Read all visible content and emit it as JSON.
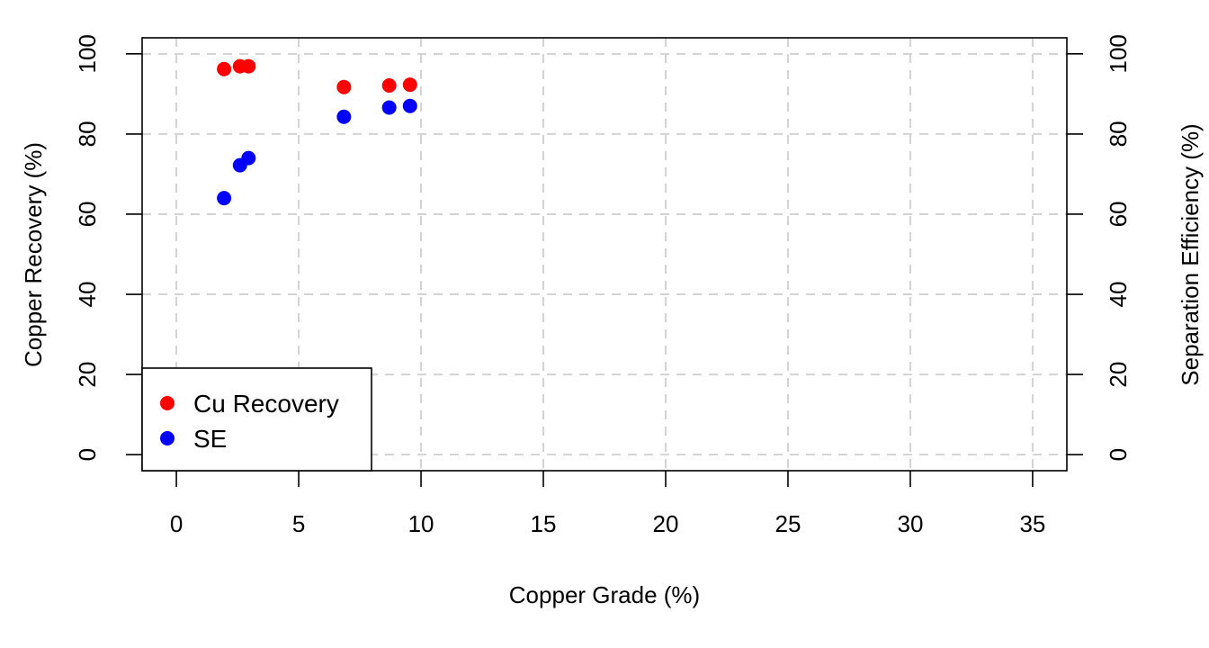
{
  "chart_data": {
    "type": "scatter",
    "title": "",
    "xlabel": "Copper Grade (%)",
    "ylabel": "Copper Recovery (%)",
    "y2label": "Separation Efficiency (%)",
    "xlim": [
      -1.4,
      36.4
    ],
    "ylim": [
      -4,
      104
    ],
    "y2lim": [
      -4,
      104
    ],
    "xticks": [
      0,
      5,
      10,
      15,
      20,
      25,
      30,
      35
    ],
    "yticks": [
      0,
      20,
      40,
      60,
      80,
      100
    ],
    "y2ticks": [
      0,
      20,
      40,
      60,
      80,
      100
    ],
    "grid": true,
    "legend": {
      "position": "bottom-left"
    },
    "series": [
      {
        "name": "Cu Recovery",
        "color": "#ff0000",
        "axis": "left",
        "points": [
          {
            "x": 1.95,
            "y": 96.2
          },
          {
            "x": 2.6,
            "y": 96.9
          },
          {
            "x": 2.95,
            "y": 96.9
          },
          {
            "x": 6.85,
            "y": 91.7
          },
          {
            "x": 8.7,
            "y": 92.1
          },
          {
            "x": 9.55,
            "y": 92.3
          }
        ]
      },
      {
        "name": "SE",
        "color": "#0000ff",
        "axis": "right",
        "points": [
          {
            "x": 1.95,
            "y": 64.0
          },
          {
            "x": 2.6,
            "y": 72.2
          },
          {
            "x": 2.95,
            "y": 74.0
          },
          {
            "x": 6.85,
            "y": 84.3
          },
          {
            "x": 8.7,
            "y": 86.6
          },
          {
            "x": 9.55,
            "y": 87.0
          }
        ]
      }
    ]
  }
}
